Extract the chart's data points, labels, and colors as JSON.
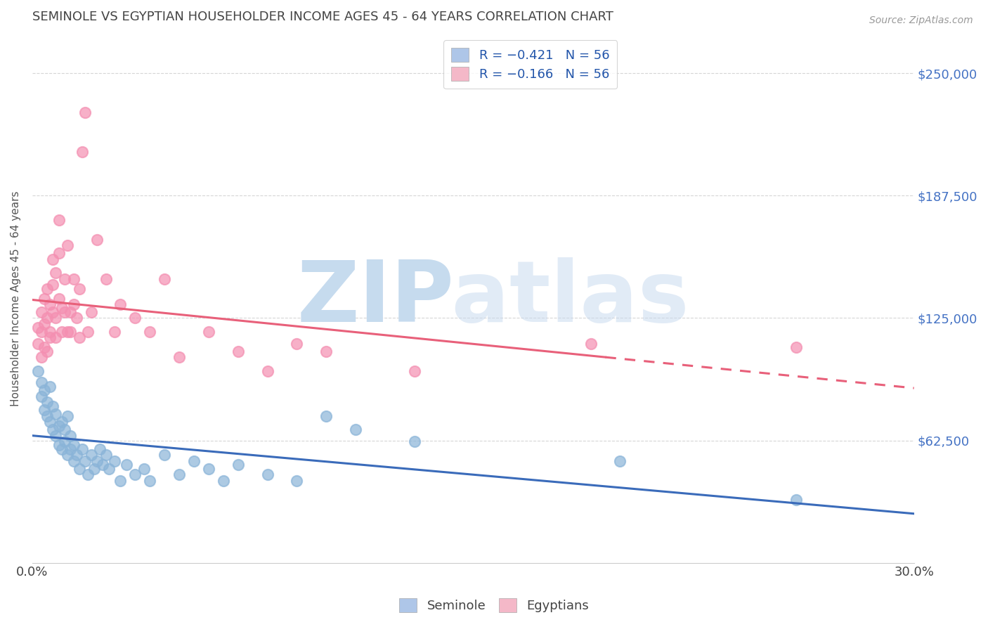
{
  "title": "SEMINOLE VS EGYPTIAN HOUSEHOLDER INCOME AGES 45 - 64 YEARS CORRELATION CHART",
  "source": "Source: ZipAtlas.com",
  "ylabel": "Householder Income Ages 45 - 64 years",
  "ytick_labels": [
    "$62,500",
    "$125,000",
    "$187,500",
    "$250,000"
  ],
  "ytick_values": [
    62500,
    125000,
    187500,
    250000
  ],
  "legend_entries": [
    {
      "label": "R = −0.421   N = 56",
      "color": "#aec6e8"
    },
    {
      "label": "R = −0.166   N = 56",
      "color": "#f4b8c8"
    }
  ],
  "bottom_legend": [
    "Seminole",
    "Egyptians"
  ],
  "seminole_color": "#8ab4d8",
  "egyptian_color": "#f48fb1",
  "seminole_line_color": "#3a6bba",
  "egyptian_line_color": "#e8607a",
  "xmin": 0.0,
  "xmax": 0.3,
  "ymin": 0,
  "ymax": 270000,
  "seminole_points": [
    [
      0.002,
      98000
    ],
    [
      0.003,
      92000
    ],
    [
      0.003,
      85000
    ],
    [
      0.004,
      88000
    ],
    [
      0.004,
      78000
    ],
    [
      0.005,
      82000
    ],
    [
      0.005,
      75000
    ],
    [
      0.006,
      72000
    ],
    [
      0.006,
      90000
    ],
    [
      0.007,
      68000
    ],
    [
      0.007,
      80000
    ],
    [
      0.008,
      65000
    ],
    [
      0.008,
      76000
    ],
    [
      0.009,
      60000
    ],
    [
      0.009,
      70000
    ],
    [
      0.01,
      72000
    ],
    [
      0.01,
      58000
    ],
    [
      0.011,
      62000
    ],
    [
      0.011,
      68000
    ],
    [
      0.012,
      55000
    ],
    [
      0.012,
      75000
    ],
    [
      0.013,
      58000
    ],
    [
      0.013,
      65000
    ],
    [
      0.014,
      52000
    ],
    [
      0.014,
      60000
    ],
    [
      0.015,
      55000
    ],
    [
      0.016,
      48000
    ],
    [
      0.017,
      58000
    ],
    [
      0.018,
      52000
    ],
    [
      0.019,
      45000
    ],
    [
      0.02,
      55000
    ],
    [
      0.021,
      48000
    ],
    [
      0.022,
      52000
    ],
    [
      0.023,
      58000
    ],
    [
      0.024,
      50000
    ],
    [
      0.025,
      55000
    ],
    [
      0.026,
      48000
    ],
    [
      0.028,
      52000
    ],
    [
      0.03,
      42000
    ],
    [
      0.032,
      50000
    ],
    [
      0.035,
      45000
    ],
    [
      0.038,
      48000
    ],
    [
      0.04,
      42000
    ],
    [
      0.045,
      55000
    ],
    [
      0.05,
      45000
    ],
    [
      0.055,
      52000
    ],
    [
      0.06,
      48000
    ],
    [
      0.065,
      42000
    ],
    [
      0.07,
      50000
    ],
    [
      0.08,
      45000
    ],
    [
      0.09,
      42000
    ],
    [
      0.1,
      75000
    ],
    [
      0.11,
      68000
    ],
    [
      0.13,
      62000
    ],
    [
      0.2,
      52000
    ],
    [
      0.26,
      32000
    ]
  ],
  "egyptian_points": [
    [
      0.002,
      120000
    ],
    [
      0.002,
      112000
    ],
    [
      0.003,
      128000
    ],
    [
      0.003,
      118000
    ],
    [
      0.003,
      105000
    ],
    [
      0.004,
      135000
    ],
    [
      0.004,
      122000
    ],
    [
      0.004,
      110000
    ],
    [
      0.005,
      140000
    ],
    [
      0.005,
      125000
    ],
    [
      0.005,
      108000
    ],
    [
      0.006,
      132000
    ],
    [
      0.006,
      118000
    ],
    [
      0.006,
      115000
    ],
    [
      0.007,
      155000
    ],
    [
      0.007,
      142000
    ],
    [
      0.007,
      128000
    ],
    [
      0.008,
      148000
    ],
    [
      0.008,
      125000
    ],
    [
      0.008,
      115000
    ],
    [
      0.009,
      158000
    ],
    [
      0.009,
      135000
    ],
    [
      0.009,
      175000
    ],
    [
      0.01,
      130000
    ],
    [
      0.01,
      118000
    ],
    [
      0.011,
      145000
    ],
    [
      0.011,
      128000
    ],
    [
      0.012,
      162000
    ],
    [
      0.012,
      118000
    ],
    [
      0.013,
      128000
    ],
    [
      0.013,
      118000
    ],
    [
      0.014,
      145000
    ],
    [
      0.014,
      132000
    ],
    [
      0.015,
      125000
    ],
    [
      0.016,
      140000
    ],
    [
      0.016,
      115000
    ],
    [
      0.017,
      210000
    ],
    [
      0.018,
      230000
    ],
    [
      0.019,
      118000
    ],
    [
      0.02,
      128000
    ],
    [
      0.022,
      165000
    ],
    [
      0.025,
      145000
    ],
    [
      0.028,
      118000
    ],
    [
      0.03,
      132000
    ],
    [
      0.035,
      125000
    ],
    [
      0.04,
      118000
    ],
    [
      0.045,
      145000
    ],
    [
      0.05,
      105000
    ],
    [
      0.06,
      118000
    ],
    [
      0.07,
      108000
    ],
    [
      0.08,
      98000
    ],
    [
      0.09,
      112000
    ],
    [
      0.1,
      108000
    ],
    [
      0.13,
      98000
    ],
    [
      0.19,
      112000
    ],
    [
      0.26,
      110000
    ]
  ],
  "background_color": "#ffffff",
  "grid_color": "#cccccc",
  "title_color": "#444444",
  "axis_label_color": "#555555",
  "ytick_color": "#4472c4",
  "xtick_color": "#444444",
  "watermark_zip_color": "#c8dff0",
  "watermark_atlas_color": "#b8d0e8"
}
